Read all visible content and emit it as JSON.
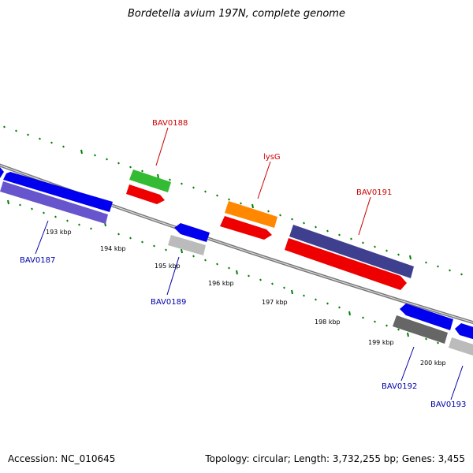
{
  "title": "Bordetella avium 197N, complete genome",
  "footer": {
    "accession": "Accession: NC_010645",
    "summary": "Topology: circular; Length: 3,732,255 bp; Genes: 3,455"
  },
  "genes": {
    "bav0187": "BAV0187",
    "bav0188": "BAV0188",
    "bav0189": "BAV0189",
    "lysg": "lysG",
    "bav0191": "BAV0191",
    "bav0192": "BAV0192",
    "bav0193": "BAV0193"
  },
  "ticks": {
    "t193": "193 kbp",
    "t194": "194 kbp",
    "t195": "195 kbp",
    "t196": "196 kbp",
    "t197": "197 kbp",
    "t198": "198 kbp",
    "t199": "199 kbp",
    "t200": "200 kbp"
  },
  "colors": {
    "forward_label": "#cc0000",
    "reverse_label": "#0000aa",
    "backbone": "#888888",
    "tick_marks": "#008000"
  }
}
